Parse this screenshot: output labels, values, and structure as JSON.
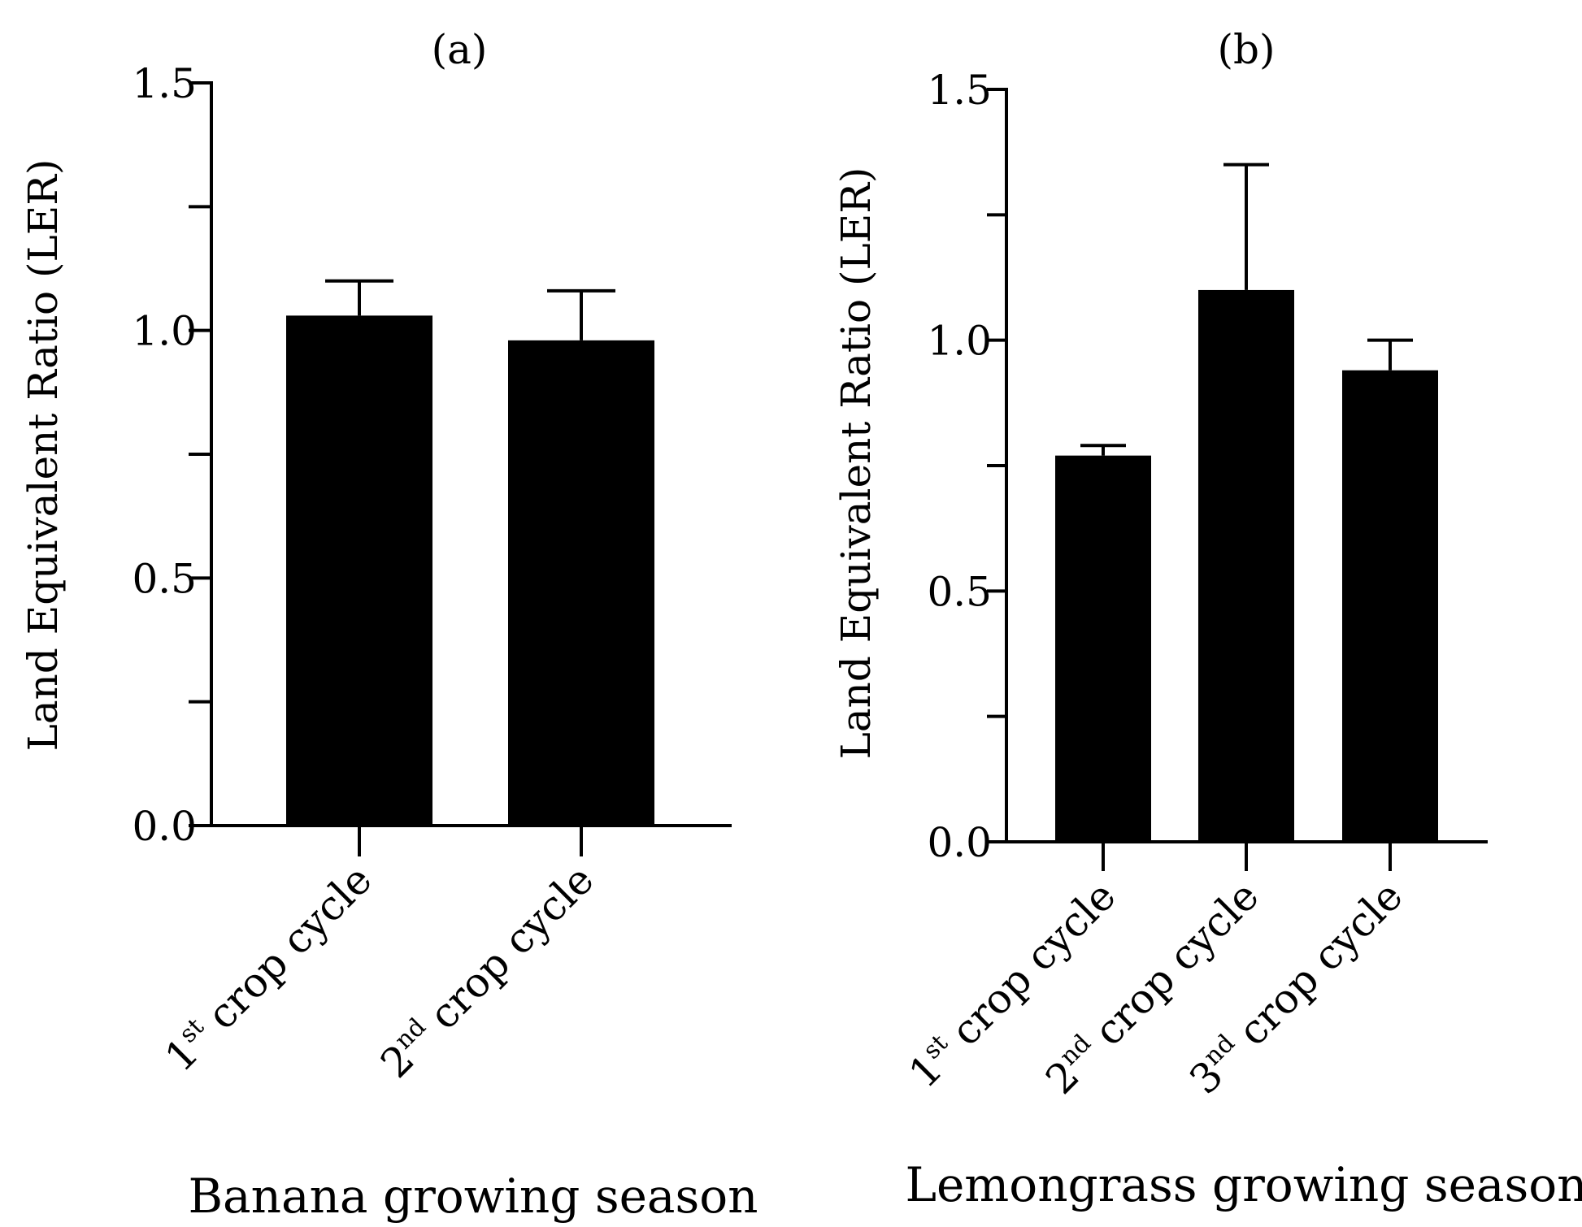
{
  "figure": {
    "panels": [
      {
        "panel_label": "(a)",
        "xlabel": "Banana growing season",
        "ylabel": "Land Equivalent Ratio (LER)"
      },
      {
        "panel_label": "(b)",
        "xlabel": "Lemongrass growing season",
        "ylabel": "Land Equivalent Ratio (LER)"
      }
    ]
  },
  "chart_data": [
    {
      "type": "bar",
      "title": "(a)",
      "xlabel": "Banana growing season",
      "ylabel": "Land Equivalent Ratio (LER)",
      "categories": [
        {
          "num": "1",
          "sup": "st",
          "rest": "crop cycle"
        },
        {
          "num": "2",
          "sup": "nd",
          "rest": "crop cycle"
        }
      ],
      "values": [
        1.03,
        0.98
      ],
      "error_upper": [
        1.1,
        1.08
      ],
      "ylim": [
        0,
        1.5
      ],
      "yticks_major": [
        "0.0",
        "0.5",
        "1.0",
        "1.5"
      ],
      "yticks_minor": [
        0.25,
        0.75,
        1.25
      ],
      "bar_color": "#000000",
      "grid": false,
      "legend": "none"
    },
    {
      "type": "bar",
      "title": "(b)",
      "xlabel": "Lemongrass growing season",
      "ylabel": "Land Equivalent Ratio (LER)",
      "categories": [
        {
          "num": "1",
          "sup": "st",
          "rest": "crop cycle"
        },
        {
          "num": "2",
          "sup": "nd",
          "rest": "crop cycle"
        },
        {
          "num": "3",
          "sup": "nd",
          "rest": "crop cycle"
        }
      ],
      "values": [
        0.77,
        1.1,
        0.94
      ],
      "error_upper": [
        0.79,
        1.35,
        1.0
      ],
      "ylim": [
        0,
        1.5
      ],
      "yticks_major": [
        "0.0",
        "0.5",
        "1.0",
        "1.5"
      ],
      "yticks_minor": [
        0.25,
        0.75,
        1.25
      ],
      "bar_color": "#000000",
      "grid": false,
      "legend": "none"
    }
  ]
}
